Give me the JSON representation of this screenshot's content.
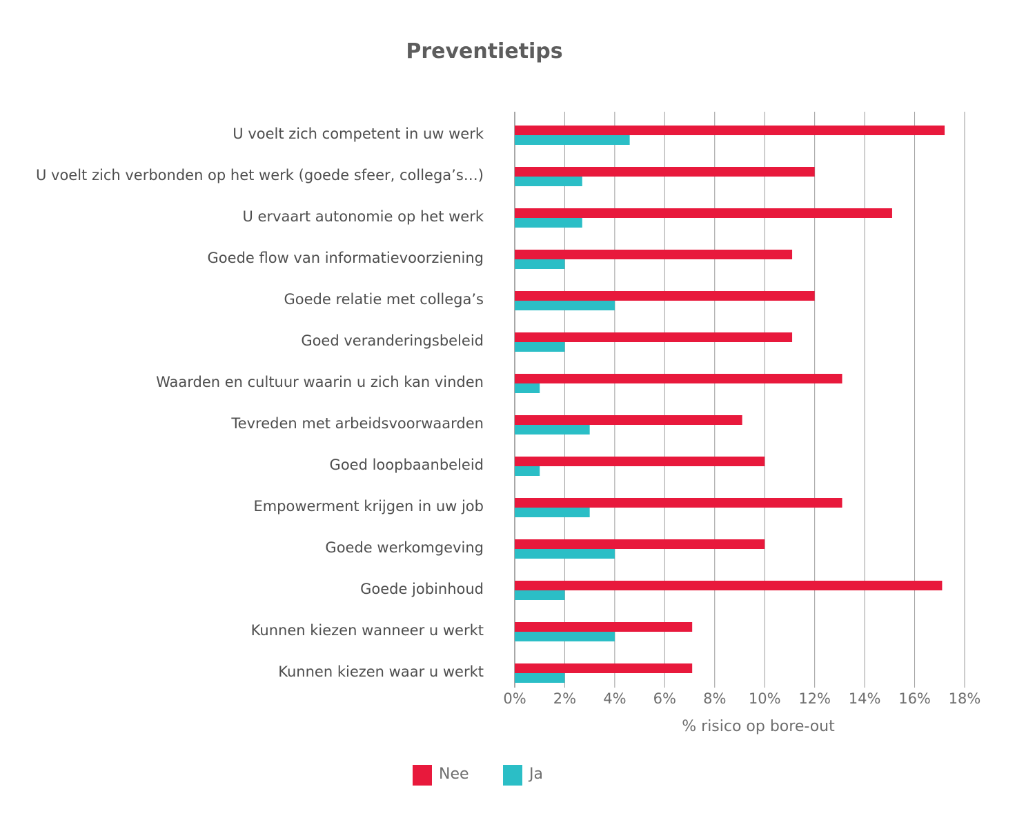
{
  "chart_data": {
    "type": "bar",
    "orientation": "horizontal",
    "title": "Preventietips",
    "xlabel": "% risico op bore-out",
    "ylabel": "",
    "xlim": [
      0,
      18
    ],
    "ticks": [
      0,
      2,
      4,
      6,
      8,
      10,
      12,
      14,
      16,
      18
    ],
    "tick_labels": [
      "0%",
      "2%",
      "4%",
      "6%",
      "8%",
      "10%",
      "12%",
      "14%",
      "16%",
      "18%"
    ],
    "grid": true,
    "legend_position": "bottom",
    "categories": [
      "U voelt zich competent in uw werk",
      "U voelt zich verbonden op het werk (goede sfeer, collega’s…)",
      "U ervaart autonomie op het werk",
      "Goede flow van informatievoorziening",
      "Goede relatie met collega’s",
      "Goed veranderingsbeleid",
      "Waarden en cultuur waarin u zich kan vinden",
      "Tevreden met arbeidsvoorwaarden",
      "Goed loopbaanbeleid",
      "Empowerment krijgen in uw job",
      "Goede werkomgeving",
      "Goede jobinhoud",
      "Kunnen kiezen wanneer u werkt",
      "Kunnen kiezen waar u werkt"
    ],
    "series": [
      {
        "name": "Nee",
        "color": "#e8193c",
        "values": [
          17.2,
          12.0,
          15.1,
          11.1,
          12.0,
          11.1,
          13.1,
          9.1,
          10.0,
          13.1,
          10.0,
          17.1,
          7.1,
          7.1
        ]
      },
      {
        "name": "Ja",
        "color": "#2bbec6",
        "values": [
          4.6,
          2.7,
          2.7,
          2.0,
          4.0,
          2.0,
          1.0,
          3.0,
          1.0,
          3.0,
          4.0,
          2.0,
          4.0,
          2.0
        ]
      }
    ]
  }
}
